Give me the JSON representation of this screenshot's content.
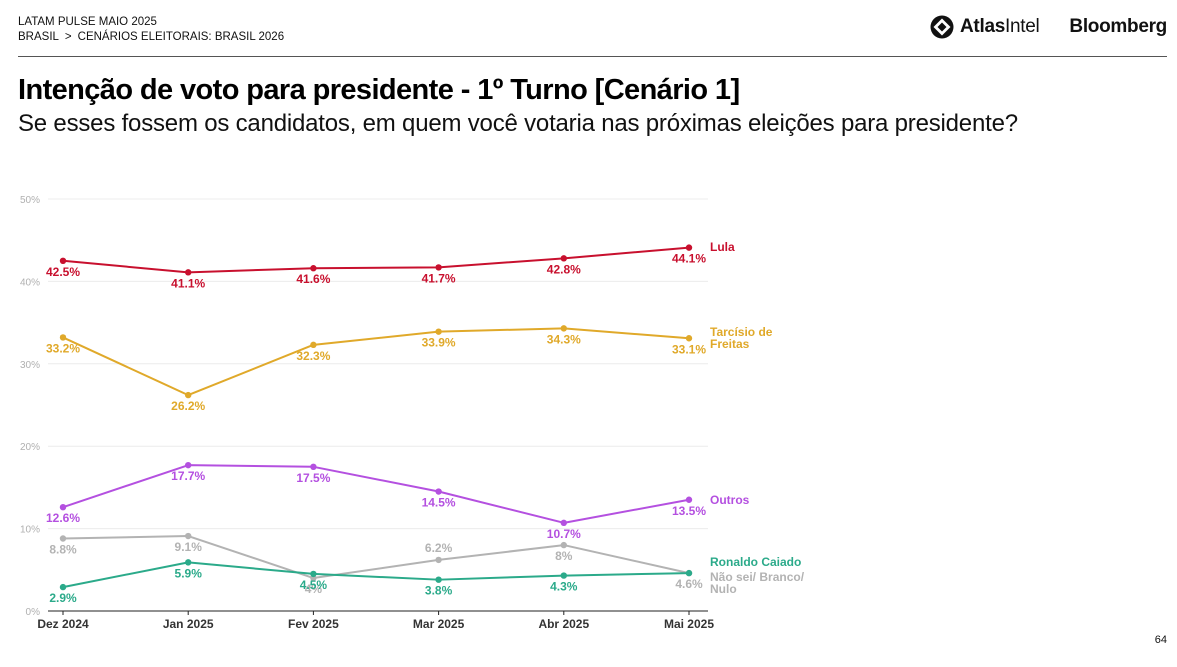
{
  "header": {
    "line1": "LATAM PULSE MAIO 2025",
    "breadcrumb_root": "BRASIL",
    "breadcrumb_sep": ">",
    "breadcrumb_leaf": "CENÁRIOS ELEITORAIS: BRASIL 2026"
  },
  "logos": {
    "atlas_bold": "Atlas",
    "atlas_light": "Intel",
    "bloomberg": "Bloomberg"
  },
  "title": "Intenção de voto para presidente - 1º Turno [Cenário 1]",
  "subtitle": "Se esses fossem os candidatos, em quem você votaria nas próximas eleições para presidente?",
  "page_number": "64",
  "chart_data": {
    "type": "line",
    "categories": [
      "Dez 2024",
      "Jan 2025",
      "Fev 2025",
      "Mar 2025",
      "Abr 2025",
      "Mai 2025"
    ],
    "ylim": [
      0,
      50
    ],
    "yticks": [
      0,
      10,
      20,
      30,
      40,
      50
    ],
    "ytick_labels": [
      "0%",
      "10%",
      "20%",
      "30%",
      "40%",
      "50%"
    ],
    "grid": true,
    "series": [
      {
        "name": "Lula",
        "legend_lines": [
          "Lula"
        ],
        "color": "#c8102e",
        "values": [
          42.5,
          41.1,
          41.6,
          41.7,
          42.8,
          44.1
        ],
        "labels": [
          "42.5%",
          "41.1%",
          "41.6%",
          "41.7%",
          "42.8%",
          "44.1%"
        ],
        "label_pos": [
          "below",
          "below",
          "below",
          "below",
          "below",
          "below"
        ]
      },
      {
        "name": "Tarcísio de Freitas",
        "legend_lines": [
          "Tarcísio de",
          "Freitas"
        ],
        "color": "#e0a92a",
        "values": [
          33.2,
          26.2,
          32.3,
          33.9,
          34.3,
          33.1
        ],
        "labels": [
          "33.2%",
          "26.2%",
          "32.3%",
          "33.9%",
          "34.3%",
          "33.1%"
        ],
        "label_pos": [
          "below",
          "below",
          "below",
          "below",
          "below",
          "below"
        ]
      },
      {
        "name": "Outros",
        "legend_lines": [
          "Outros"
        ],
        "color": "#b450e0",
        "values": [
          12.6,
          17.7,
          17.5,
          14.5,
          10.7,
          13.5
        ],
        "labels": [
          "12.6%",
          "17.7%",
          "17.5%",
          "14.5%",
          "10.7%",
          "13.5%"
        ],
        "label_pos": [
          "below",
          "below",
          "below",
          "below",
          "below",
          "below"
        ]
      },
      {
        "name": "Não sei/ Branco/ Nulo",
        "legend_lines": [
          "Não sei/ Branco/",
          "Nulo"
        ],
        "color": "#b3b3b3",
        "values": [
          8.8,
          9.1,
          4,
          6.2,
          8,
          4.6
        ],
        "labels": [
          "8.8%",
          "9.1%",
          "4%",
          "6.2%",
          "8%",
          "4.6%"
        ],
        "label_pos": [
          "below",
          "below",
          "below",
          "above",
          "below",
          "below"
        ]
      },
      {
        "name": "Ronaldo Caiado",
        "legend_lines": [
          "Ronaldo Caiado"
        ],
        "color": "#2baa8a",
        "values": [
          2.9,
          5.9,
          4.5,
          3.8,
          4.3,
          4.6
        ],
        "labels": [
          "2.9%",
          "5.9%",
          "4.5%",
          "3.8%",
          "4.3%",
          ""
        ],
        "label_pos": [
          "below",
          "below",
          "below",
          "below",
          "below",
          "below"
        ]
      }
    ]
  }
}
